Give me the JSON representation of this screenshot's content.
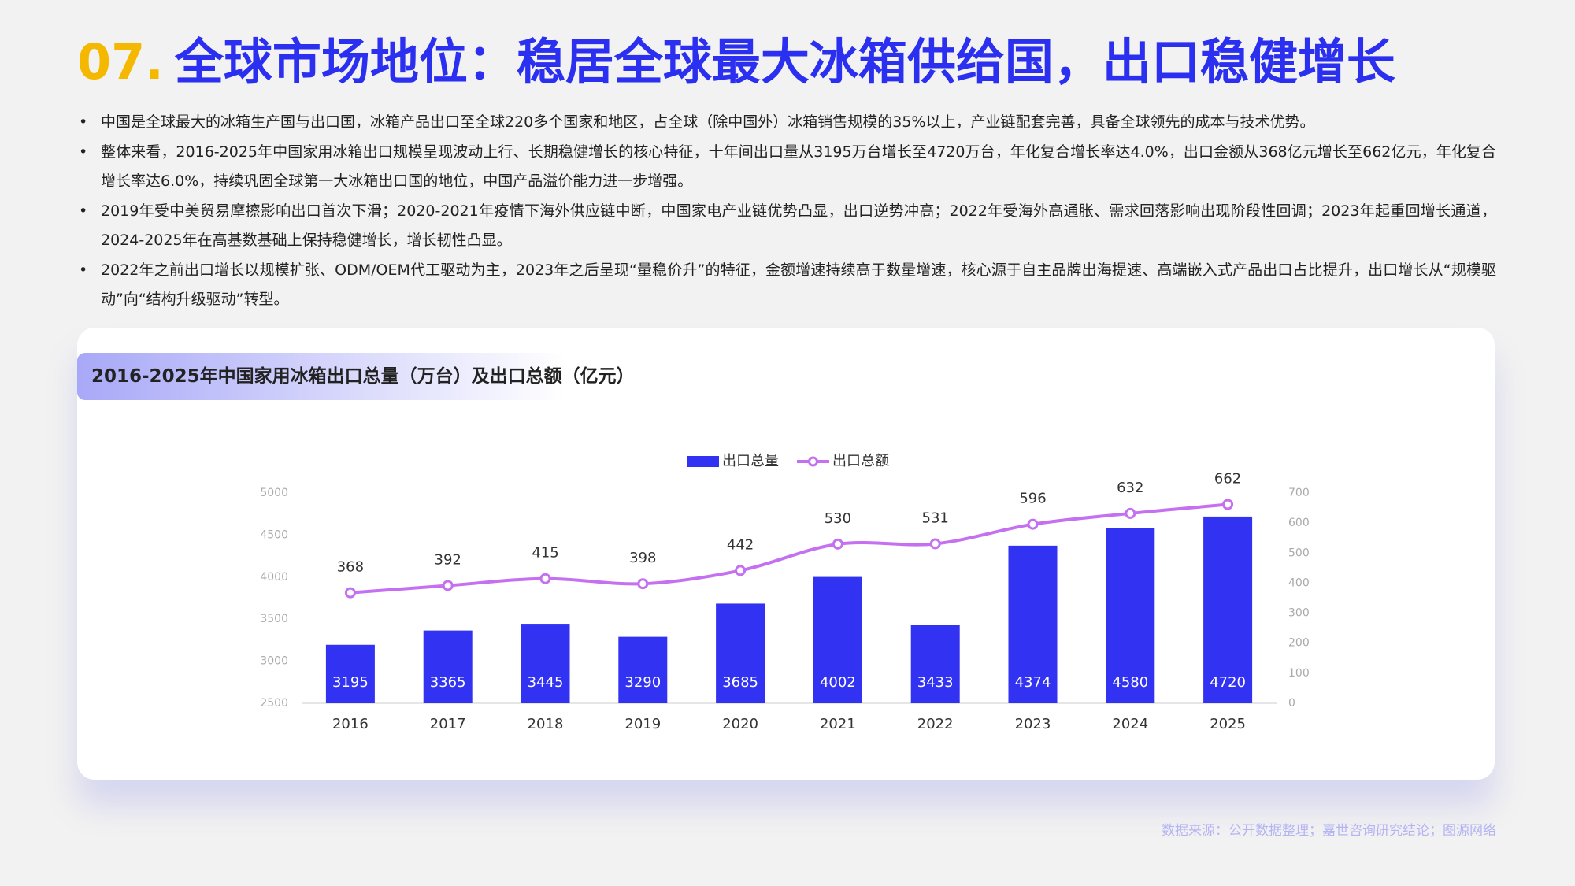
{
  "header": {
    "number": "07.",
    "title": "全球市场地位：稳居全球最大冰箱供给国，出口稳健增长"
  },
  "bullets": [
    "中国是全球最大的冰箱生产国与出口国，冰箱产品出口至全球220多个国家和地区，占全球（除中国外）冰箱销售规模的35%以上，产业链配套完善，具备全球领先的成本与技术优势。",
    "整体来看，2016-2025年中国家用冰箱出口规模呈现波动上行、长期稳健增长的核心特征，十年间出口量从3195万台增长至4720万台，年化复合增长率达4.0%，出口金额从368亿元增长至662亿元，年化复合增长率达6.0%，持续巩固全球第一大冰箱出口国的地位，中国产品溢价能力进一步增强。",
    "2019年受中美贸易摩擦影响出口首次下滑；2020-2021年疫情下海外供应链中断，中国家电产业链优势凸显，出口逆势冲高；2022年受海外高通胀、需求回落影响出现阶段性回调；2023年起重回增长通道，2024-2025年在高基数基础上保持稳健增长，增长韧性凸显。",
    "2022年之前出口增长以规模扩张、ODM/OEM代工驱动为主，2023年之后呈现“量稳价升”的特征，金额增速持续高于数量增速，核心源于自主品牌出海提速、高端嵌入式产品出口占比提升，出口增长从“规模驱动”向“结构升级驱动”转型。"
  ],
  "chart_data": {
    "type": "bar-line",
    "title": "2016-2025年中国家用冰箱出口总量（万台）及出口总额（亿元）",
    "categories": [
      "2016",
      "2017",
      "2018",
      "2019",
      "2020",
      "2021",
      "2022",
      "2023",
      "2024",
      "2025"
    ],
    "series": [
      {
        "name": "出口总量",
        "type": "bar",
        "color": "#3232f2",
        "values": [
          3195,
          3365,
          3445,
          3290,
          3685,
          4002,
          3433,
          4374,
          4580,
          4720
        ]
      },
      {
        "name": "出口总额",
        "type": "line",
        "axis": "y2",
        "color": "#c470f0",
        "values": [
          368,
          392,
          415,
          398,
          442,
          530,
          531,
          596,
          632,
          662
        ]
      }
    ],
    "ylim": [
      2500,
      5000
    ],
    "yticks": [
      2500,
      3000,
      3500,
      4000,
      4500,
      5000
    ],
    "y2lim": [
      0,
      700
    ],
    "y2ticks": [
      0,
      100,
      200,
      300,
      400,
      500,
      600,
      700
    ],
    "grid": false,
    "legend": "top"
  },
  "source": "数据来源：公开数据整理；嘉世咨询研究结论；图源网络"
}
